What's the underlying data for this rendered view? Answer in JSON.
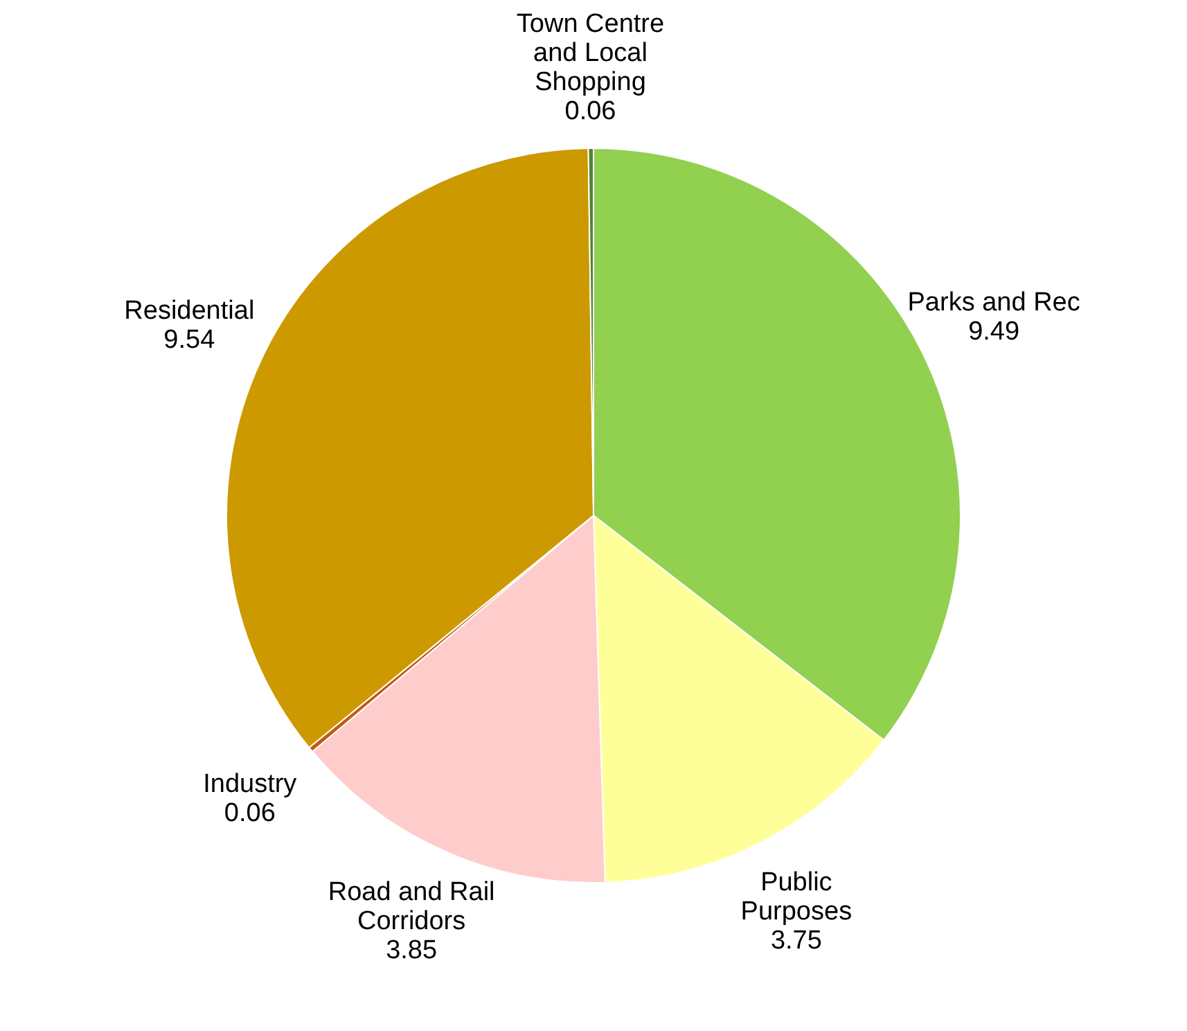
{
  "chart_data": {
    "type": "pie",
    "categories": [
      "Parks and Rec",
      "Public Purposes",
      "Road and Rail Corridors",
      "Industry",
      "Residential",
      "Town Centre and Local Shopping"
    ],
    "values": [
      9.49,
      3.75,
      3.85,
      0.06,
      9.54,
      0.06
    ],
    "colors": [
      "#92d050",
      "#ffff99",
      "#ffcccc",
      "#c55a11",
      "#cc9900",
      "#548235"
    ],
    "data_labels": true,
    "legend": false
  }
}
